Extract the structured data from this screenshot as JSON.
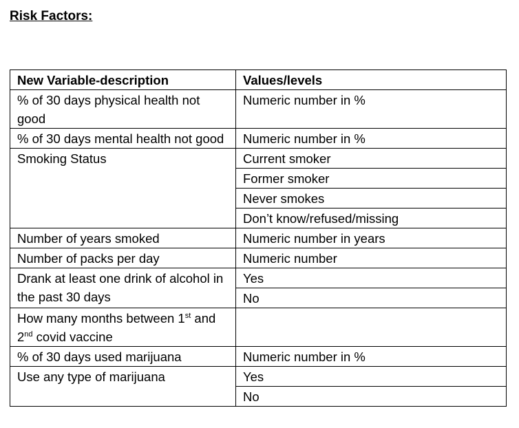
{
  "heading": "Risk Factors:",
  "table": {
    "headers": [
      "New Variable-description",
      "Values/levels"
    ],
    "rows": {
      "physical_health": {
        "label": "% of 30 days physical health not good",
        "value": "Numeric number in %"
      },
      "mental_health": {
        "label": "% of 30 days mental health not good",
        "value": "Numeric number in %"
      },
      "smoking_status": {
        "label": "Smoking Status",
        "values": [
          "Current smoker",
          "Former smoker",
          "Never smokes",
          "Don’t know/refused/missing"
        ]
      },
      "years_smoked": {
        "label": "Number of years smoked",
        "value": "Numeric number in years"
      },
      "packs_per_day": {
        "label": "Number of packs per day",
        "value": "Numeric number"
      },
      "alcohol": {
        "label": "Drank at least one drink of alcohol in the past 30 days",
        "values": [
          "Yes",
          "No"
        ]
      },
      "covid_vaccine": {
        "label_part1": "How many months between 1",
        "label_sup1": "st",
        "label_part2": "and 2",
        "label_sup2": "nd",
        "label_part3": " covid vaccine",
        "value": ""
      },
      "marijuana_days": {
        "label": "% of 30 days used marijuana",
        "value": "Numeric number in %"
      },
      "marijuana_any": {
        "label": "Use any type of marijuana",
        "values": [
          "Yes",
          "No"
        ]
      }
    }
  }
}
